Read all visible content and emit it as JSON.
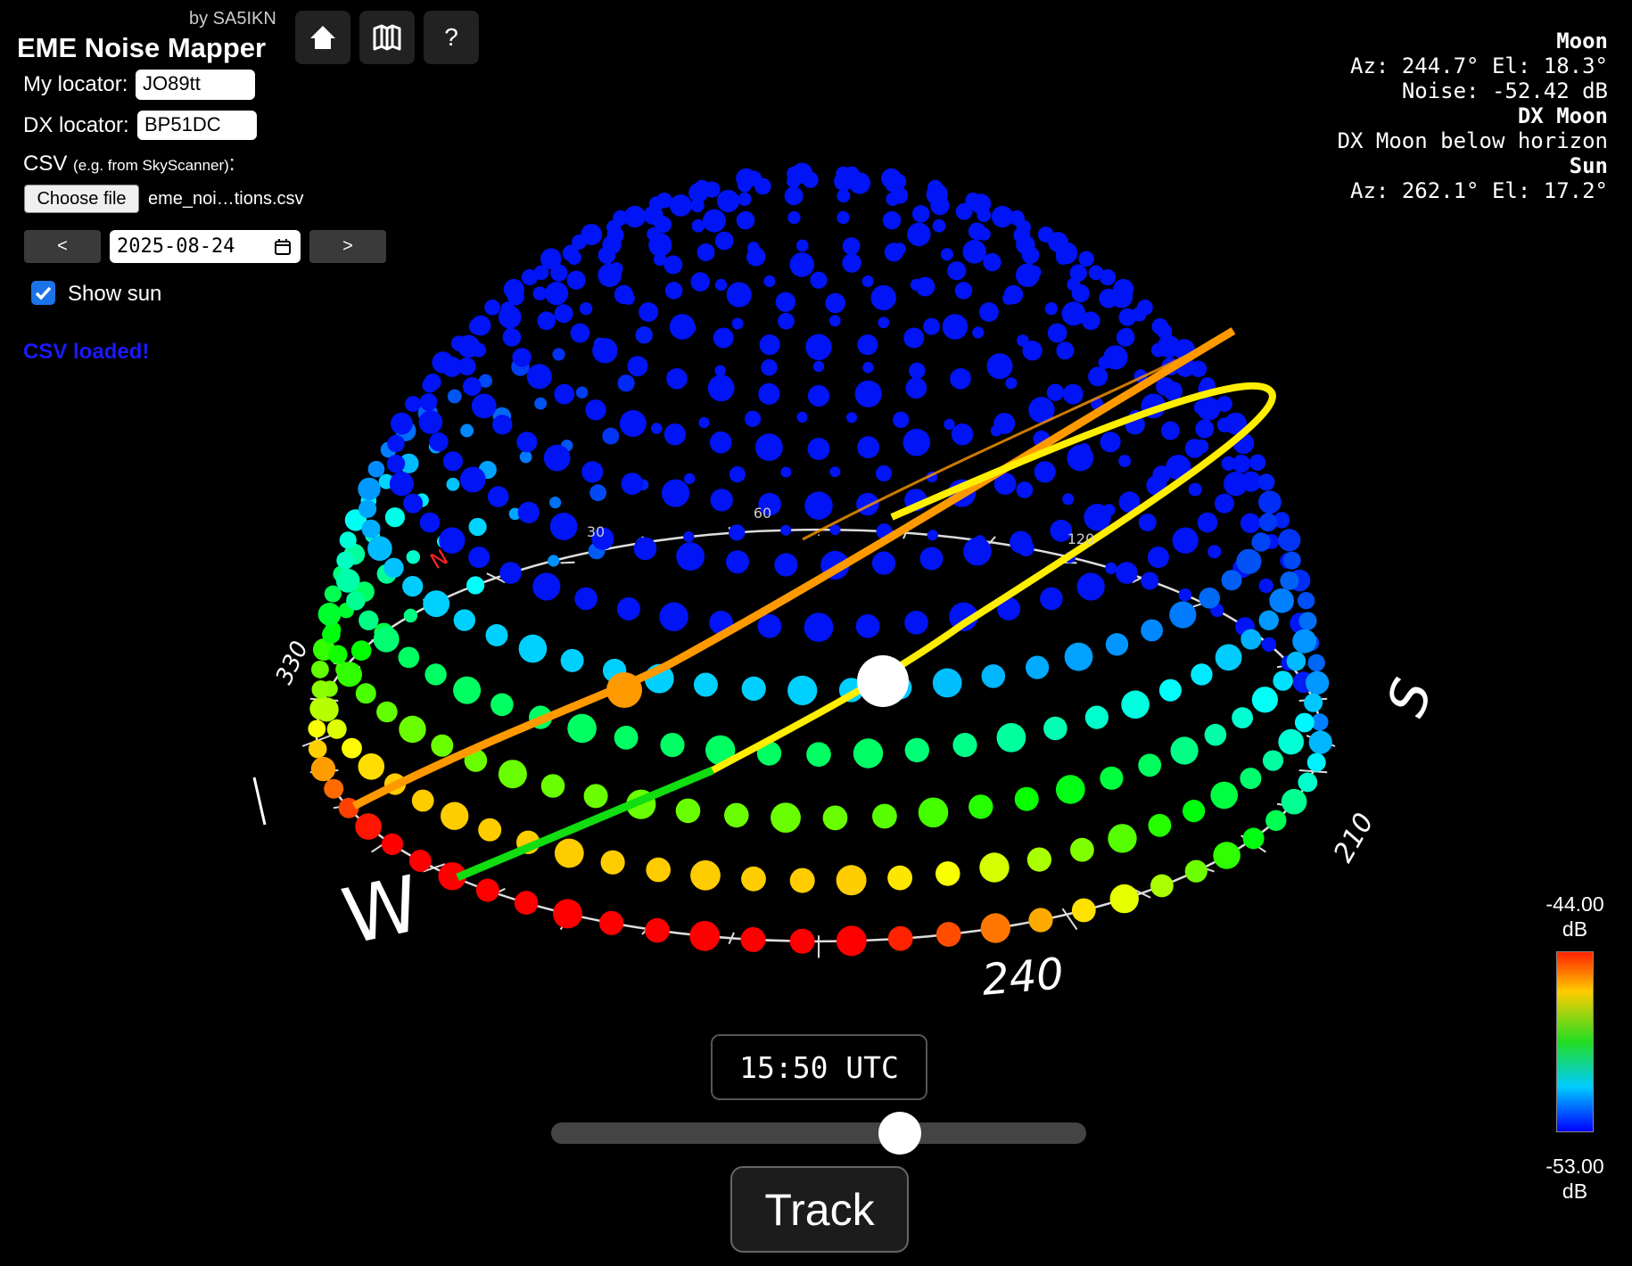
{
  "header": {
    "byline": "by SA5IKN",
    "title": "EME Noise Mapper",
    "help_button": "?"
  },
  "form": {
    "my_locator_label": "My locator:",
    "my_locator": "JO89tt",
    "dx_locator_label": "DX locator:",
    "dx_locator": "BP51DC",
    "csv_label": "CSV",
    "csv_hint": "(e.g. from SkyScanner)",
    "csv_colon": ":",
    "file_button": "Choose file",
    "file_name": "eme_noi…tions.csv",
    "prev_button": "<",
    "date": "2025-08-24",
    "next_button": ">",
    "show_sun_label": "Show sun",
    "status": "CSV loaded!"
  },
  "info": {
    "lines": [
      {
        "text": "Moon",
        "bold": true
      },
      {
        "text": "Az: 244.7° El: 18.3°",
        "bold": false
      },
      {
        "text": "Noise: -52.42 dB",
        "bold": false
      },
      {
        "text": "DX Moon",
        "bold": true
      },
      {
        "text": "DX Moon below horizon",
        "bold": false
      },
      {
        "text": "Sun",
        "bold": true
      },
      {
        "text": "Az: 262.1° El: 17.2°",
        "bold": false
      }
    ]
  },
  "sky_view": {
    "west": "W",
    "south": "S",
    "az_240": "240",
    "az_210": "210",
    "az_330": "330",
    "north": "N",
    "az_30": "30",
    "az_60": "60",
    "az_120": "120"
  },
  "time": {
    "display": "15:50 UTC"
  },
  "track_button": "Track",
  "colorbar": {
    "max_label": "-44.00",
    "max_unit": "dB",
    "min_label": "-53.00",
    "min_unit": "dB"
  }
}
